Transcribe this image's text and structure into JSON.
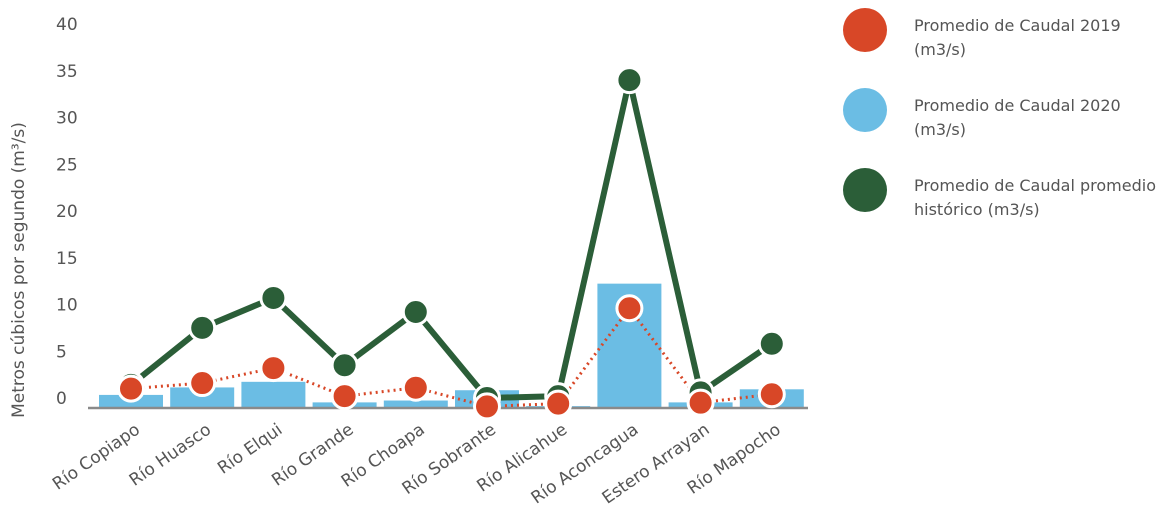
{
  "chart_data": {
    "type": "bar",
    "categories": [
      "Río Copiapo",
      "Río Huasco",
      "Río Elqui",
      "Río Grande",
      "Río Choapa",
      "Río Sobrante",
      "Río Alicahue",
      "Río Aconcagua",
      "Estero Arrayan",
      "Río Mapocho"
    ],
    "title": "",
    "xlabel": "",
    "ylabel": "Metros cúbicos por segundo (m³/s)",
    "ylim": [
      0,
      40
    ],
    "yticks": [
      0,
      5,
      10,
      15,
      20,
      25,
      30,
      35,
      40
    ],
    "ytick_labels": [
      "0",
      "5",
      "10",
      "15",
      "20",
      "25",
      "30",
      "35",
      "40"
    ],
    "grid": false,
    "legend_position": "right",
    "series": [
      {
        "name": "Promedio de Caudal 2019 (m3/s)",
        "kind": "line",
        "style": "dotted",
        "color": "#d84727",
        "values": [
          1.0,
          1.6,
          3.2,
          0.2,
          1.1,
          -0.9,
          -0.6,
          9.6,
          -0.5,
          0.4
        ]
      },
      {
        "name": "Promedio de Caudal 2020 (m3/s)",
        "kind": "bar",
        "color": "#6bbde4",
        "values": [
          1.4,
          2.2,
          2.8,
          0.6,
          0.8,
          1.9,
          0.2,
          13.3,
          0.6,
          2.0
        ]
      },
      {
        "name": "Promedio de Caudal promedio histórico (m3/s)",
        "kind": "line",
        "style": "solid",
        "color": "#2b5e38",
        "values": [
          1.4,
          7.5,
          10.7,
          3.5,
          9.2,
          0.0,
          0.2,
          34.0,
          0.6,
          5.8
        ]
      }
    ]
  },
  "legend": {
    "items": [
      {
        "label": "Promedio de Caudal 2019 (m3/s)",
        "color": "#d84727"
      },
      {
        "label": "Promedio de Caudal 2020 (m3/s)",
        "color": "#6bbde4"
      },
      {
        "label": "Promedio de Caudal promedio histórico (m3/s)",
        "color": "#2b5e38"
      }
    ]
  }
}
